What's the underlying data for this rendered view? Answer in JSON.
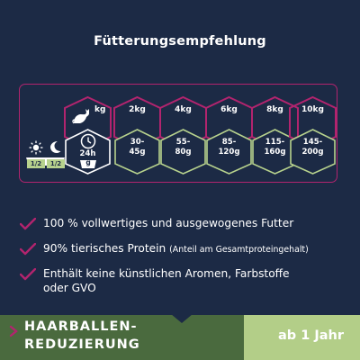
{
  "title": "Fütterungsempfehlung",
  "table": {
    "unit_label": "kg",
    "time_label": "24h",
    "unit_g": "g",
    "day_fractions": [
      "1/2",
      "1/2"
    ],
    "columns": [
      {
        "weight": "2kg",
        "amount_line1": "30-",
        "amount_line2": "45g"
      },
      {
        "weight": "4kg",
        "amount_line1": "55-",
        "amount_line2": "80g"
      },
      {
        "weight": "6kg",
        "amount_line1": "85-",
        "amount_line2": "120g"
      },
      {
        "weight": "8kg",
        "amount_line1": "115-",
        "amount_line2": "160g"
      },
      {
        "weight": "10kg",
        "amount_line1": "145-",
        "amount_line2": "200g"
      }
    ]
  },
  "bullets": [
    {
      "text": "100 % vollwertiges und ausgewogenes Futter",
      "note": ""
    },
    {
      "text": "90% tierisches Protein ",
      "note": "(Anteil am Gesamtproteingehalt)"
    },
    {
      "text": "Enthält keine künstlichen Aromen, Farbstoffe",
      "text2": "oder GVO"
    }
  ],
  "footer": {
    "line1": "HAARBALLEN-",
    "line2": "REDUZIERUNG",
    "age": "ab 1 Jahr"
  },
  "colors": {
    "background": "#1c2a45",
    "accent": "#b2246e",
    "green_light": "#b7d28d",
    "green_dark": "#4a6a3e"
  }
}
